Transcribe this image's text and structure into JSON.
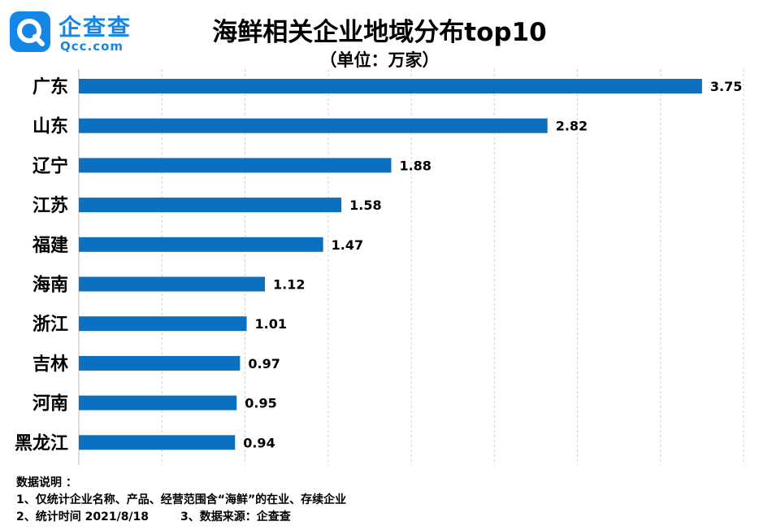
{
  "brand": {
    "name_cn": "企查查",
    "name_en": "Qcc.com"
  },
  "chart_data": {
    "type": "bar",
    "orientation": "horizontal",
    "title": "海鲜相关企业地域分布top10",
    "subtitle": "（单位：万家）",
    "categories": [
      "广东",
      "山东",
      "辽宁",
      "江苏",
      "福建",
      "海南",
      "浙江",
      "吉林",
      "河南",
      "黑龙江"
    ],
    "values": [
      3.75,
      2.82,
      1.88,
      1.58,
      1.47,
      1.12,
      1.01,
      0.97,
      0.95,
      0.94
    ],
    "value_labels": [
      "3.75",
      "2.82",
      "1.88",
      "1.58",
      "1.47",
      "1.12",
      "1.01",
      "0.97",
      "0.95",
      "0.94"
    ],
    "xlim": [
      0,
      4
    ],
    "grid": true,
    "bar_color": "#0b70c0"
  },
  "notes": {
    "heading": "数据说明 ：",
    "line1": "1、仅统计企业名称、产品、经营范围含“海鲜”的在业、存续企业",
    "line2": "2、统计时间 2021/8/18        3、数据来源：企查查"
  }
}
